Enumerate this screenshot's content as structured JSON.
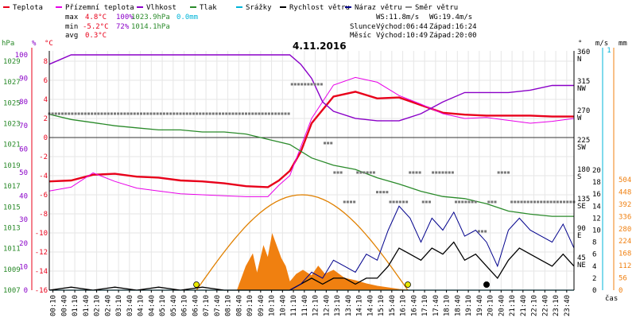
{
  "legend": [
    {
      "label": "Teplota",
      "color": "#e8001a"
    },
    {
      "label": "Přízemní teplota",
      "color": "#e800e8"
    },
    {
      "label": "Vlhkost",
      "color": "#8a00c8"
    },
    {
      "label": "Tlak",
      "color": "#2a8a2a"
    },
    {
      "label": "Srážky",
      "color": "#00b4d8"
    },
    {
      "label": "Rychlost větru",
      "color": "#000000"
    },
    {
      "label": "Náraz větru",
      "color": "#00008c"
    },
    {
      "label": "Směr větru",
      "color": "#888888"
    }
  ],
  "stats": {
    "max_label": "max",
    "max_temp": "4.8°C",
    "max_hum": "100%",
    "max_press": "1023.9hPa",
    "max_rain": "0.0mm",
    "min_label": "min",
    "min_temp": "-5.2°C",
    "min_hum": "72%",
    "min_press": "1014.1hPa",
    "avg_label": "avg",
    "avg_temp": "0.3°C"
  },
  "info": {
    "ws": "WS:11.8m/s",
    "wg": "WG:19.4m/s",
    "sun_label": "Slunce",
    "sun_rise": "Východ:06:44",
    "sun_set": "Západ:16:24",
    "moon_label": "Měsíc",
    "moon_rise": "Východ:10:49",
    "moon_set": "Západ:20:00"
  },
  "chart_data": {
    "type": "line",
    "title": "4.11.2016",
    "xlabel": "čas",
    "x_ticks": [
      "00:10",
      "00:40",
      "01:10",
      "01:40",
      "02:10",
      "02:40",
      "03:10",
      "03:40",
      "04:10",
      "04:40",
      "05:10",
      "05:40",
      "06:10",
      "06:40",
      "07:10",
      "07:40",
      "08:10",
      "08:40",
      "09:10",
      "09:40",
      "10:10",
      "10:40",
      "11:10",
      "11:40",
      "12:10",
      "12:40",
      "13:10",
      "13:40",
      "14:10",
      "14:40",
      "15:10",
      "15:40",
      "16:10",
      "16:40",
      "17:10",
      "17:40",
      "18:10",
      "18:40",
      "19:10",
      "19:40",
      "20:10",
      "20:40",
      "21:10",
      "21:40",
      "22:10",
      "22:40",
      "23:10",
      "23:40"
    ],
    "axes": {
      "temperature": {
        "unit": "°C",
        "ticks": [
          8,
          6,
          4,
          2,
          0,
          -2,
          -4,
          -6,
          -8,
          -10,
          -12,
          -14,
          -16
        ],
        "ylim": [
          -16,
          9
        ]
      },
      "pressure": {
        "unit": "hPa",
        "ticks": [
          1029,
          1027,
          1025,
          1023,
          1021,
          1019,
          1017,
          1015,
          1013,
          1011,
          1009,
          1007
        ],
        "ylim": [
          1007,
          1031
        ]
      },
      "humidity": {
        "unit": "%",
        "ticks": [
          100,
          90,
          80,
          70,
          60,
          50,
          40,
          30,
          20,
          10,
          0
        ],
        "ylim": [
          0,
          100
        ]
      },
      "wind_direction": {
        "unit": "°",
        "ticks": [
          360,
          315,
          270,
          225,
          180,
          135,
          90,
          45,
          0
        ],
        "tick_labels": [
          "N",
          "NW",
          "W",
          "SW",
          "S",
          "SE",
          "E",
          "NE",
          ""
        ]
      },
      "wind_speed": {
        "unit": "m/s",
        "ticks": [
          20,
          18,
          16,
          14,
          12,
          10,
          8,
          6,
          4,
          2,
          0
        ]
      },
      "rain": {
        "unit": "mm",
        "ticks": [
          504,
          448,
          392,
          336,
          280,
          224,
          168,
          112,
          56,
          0
        ]
      }
    },
    "series": [
      {
        "name": "Teplota",
        "axis": "temperature",
        "color": "#e8001a",
        "x": [
          0,
          1,
          2,
          3,
          4,
          5,
          6,
          7,
          8,
          9,
          10,
          10.5,
          11,
          11.5,
          12,
          13,
          14,
          15,
          16,
          17,
          18,
          19,
          20,
          21,
          22,
          23,
          24
        ],
        "y": [
          -4.6,
          -4.5,
          -3.9,
          -3.8,
          -4.1,
          -4.2,
          -4.5,
          -4.6,
          -4.8,
          -5.1,
          -5.2,
          -4.5,
          -3.5,
          -1.5,
          1.5,
          4.3,
          4.8,
          4.1,
          4.2,
          3.4,
          2.6,
          2.4,
          2.3,
          2.3,
          2.3,
          2.2,
          2.2
        ]
      },
      {
        "name": "Přízemní teplota",
        "axis": "temperature",
        "color": "#e800e8",
        "x": [
          0,
          1,
          2,
          3,
          4,
          5,
          6,
          7,
          8,
          9,
          10,
          10.5,
          11,
          11.5,
          12,
          13,
          14,
          15,
          16,
          17,
          18,
          19,
          20,
          21,
          22,
          23,
          24
        ],
        "y": [
          -5.6,
          -5.2,
          -3.7,
          -4.6,
          -5.3,
          -5.6,
          -5.9,
          -6,
          -6.1,
          -6.2,
          -6.2,
          -5,
          -4,
          -1,
          2,
          5.5,
          6.3,
          5.8,
          4.4,
          3.5,
          2.5,
          2,
          2.1,
          1.8,
          1.5,
          1.7,
          2
        ]
      },
      {
        "name": "Vlhkost",
        "axis": "humidity",
        "color": "#8a00c8",
        "x": [
          0,
          1,
          2,
          3,
          4,
          5,
          6,
          7,
          8,
          9,
          10,
          11,
          11.5,
          12,
          12.5,
          13,
          14,
          15,
          16,
          17,
          18,
          19,
          20,
          21,
          22,
          23,
          24
        ],
        "y": [
          96,
          100,
          100,
          100,
          100,
          100,
          100,
          100,
          100,
          100,
          100,
          100,
          96,
          90,
          80,
          76,
          73,
          72,
          72,
          75,
          80,
          84,
          84,
          84,
          85,
          87,
          87
        ]
      },
      {
        "name": "Tlak",
        "axis": "pressure",
        "color": "#2a8a2a",
        "x": [
          0,
          1,
          2,
          3,
          4,
          5,
          6,
          7,
          8,
          9,
          10,
          11,
          12,
          13,
          14,
          15,
          16,
          17,
          18,
          19,
          20,
          21,
          22,
          23,
          24
        ],
        "y": [
          1023.9,
          1023.4,
          1023.1,
          1022.8,
          1022.6,
          1022.4,
          1022.4,
          1022.2,
          1022.2,
          1022,
          1021.5,
          1021,
          1019.7,
          1019,
          1018.6,
          1017.8,
          1017.2,
          1016.5,
          1016,
          1015.8,
          1015.3,
          1014.6,
          1014.3,
          1014.1,
          1014.1
        ]
      },
      {
        "name": "Srážky",
        "axis": "rain",
        "color": "#00b4d8",
        "x": [
          0,
          24
        ],
        "y": [
          0,
          0
        ]
      },
      {
        "name": "Rychlost větru",
        "axis": "wind_speed",
        "color": "#000000",
        "x": [
          0,
          1,
          2,
          3,
          4,
          5,
          6,
          7,
          8,
          9,
          10,
          11,
          11.5,
          12,
          12.5,
          13,
          13.5,
          14,
          14.5,
          15,
          15.5,
          16,
          16.5,
          17,
          17.5,
          18,
          18.5,
          19,
          19.5,
          20,
          20.5,
          21,
          21.5,
          22,
          22.5,
          23,
          23.5,
          24
        ],
        "y": [
          0,
          0.5,
          0,
          0.5,
          0,
          0.5,
          0,
          0.5,
          0,
          0,
          0,
          0,
          1,
          2,
          1,
          2,
          2,
          1,
          2,
          2,
          4,
          7,
          6,
          5,
          7,
          6,
          8,
          5,
          6,
          4,
          2,
          5,
          7,
          6,
          5,
          4,
          6,
          4
        ]
      },
      {
        "name": "Náraz větru",
        "axis": "wind_speed",
        "color": "#00008c",
        "x": [
          0,
          1,
          2,
          3,
          4,
          5,
          6,
          7,
          8,
          9,
          10,
          11,
          11.5,
          12,
          12.5,
          13,
          13.5,
          14,
          14.5,
          15,
          15.5,
          16,
          16.5,
          17,
          17.5,
          18,
          18.5,
          19,
          19.5,
          20,
          20.5,
          21,
          21.5,
          22,
          22.5,
          23,
          23.5,
          24
        ],
        "y": [
          0,
          0,
          0,
          0,
          0,
          0,
          0,
          0,
          0,
          0,
          0,
          0,
          1,
          3,
          2,
          5,
          4,
          3,
          6,
          5,
          10,
          14,
          12,
          8,
          12,
          10,
          13,
          9,
          10,
          8,
          4,
          10,
          12,
          10,
          9,
          8,
          11,
          7
        ]
      },
      {
        "name": "Směr větru",
        "axis": "wind_direction",
        "color": "#888888",
        "x": [
          0,
          1,
          2,
          3,
          4,
          5,
          6,
          7,
          8,
          9,
          10,
          11,
          11.5,
          12,
          12.5,
          13,
          13.5,
          14,
          14.5,
          15,
          15.5,
          16,
          16.5,
          17,
          17.5,
          18,
          18.5,
          19,
          19.5,
          20,
          20.5,
          21,
          21.5,
          22,
          22.5,
          23,
          23.5,
          24
        ],
        "y": [
          270,
          270,
          270,
          270,
          270,
          270,
          270,
          270,
          270,
          270,
          270,
          315,
          315,
          315,
          225,
          180,
          135,
          180,
          180,
          150,
          135,
          135,
          180,
          135,
          180,
          180,
          135,
          135,
          90,
          135,
          180,
          135,
          135,
          135,
          135,
          135,
          135,
          135
        ]
      }
    ]
  }
}
